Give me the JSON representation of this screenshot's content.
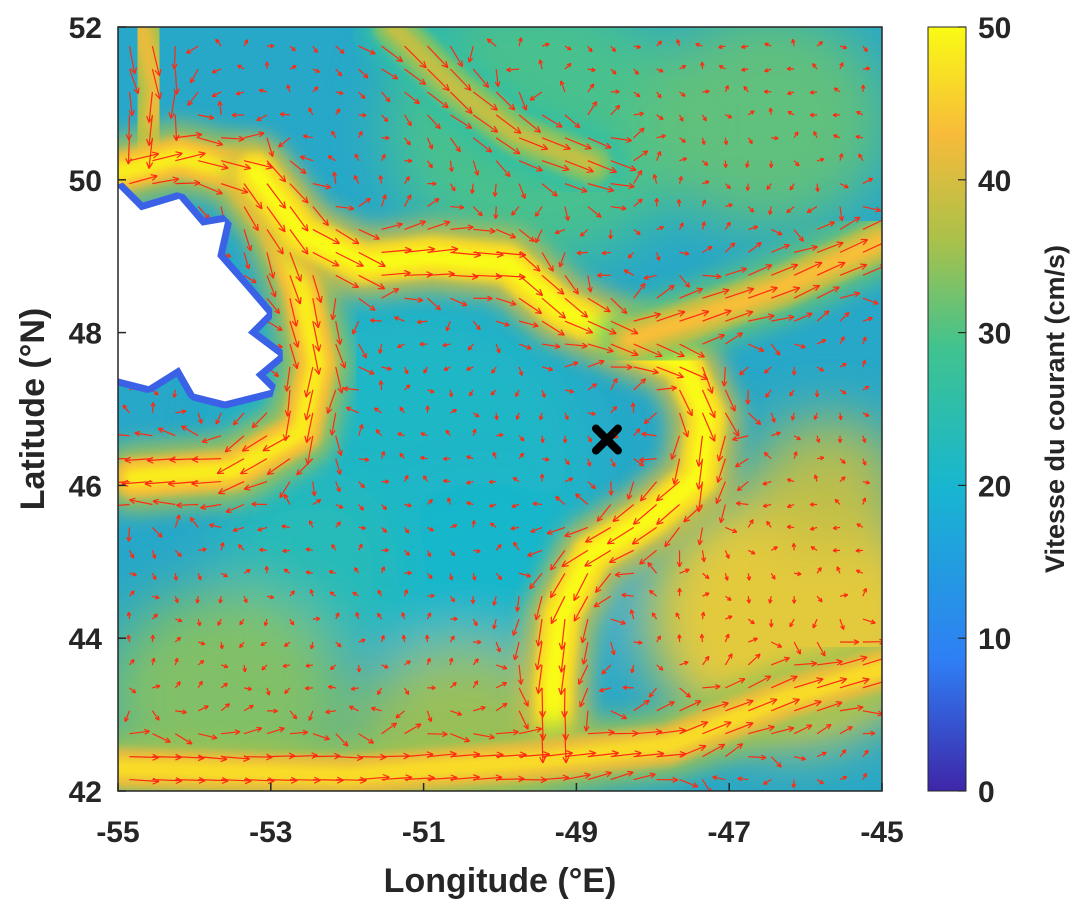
{
  "chart_data": {
    "type": "heatmap",
    "title": "",
    "xlabel": "Longitude (°E)",
    "ylabel": "Latitude (°N)",
    "xlim": [
      -55,
      -45
    ],
    "ylim": [
      42,
      52
    ],
    "x_ticks": [
      "-55",
      "-53",
      "-51",
      "-49",
      "-47",
      "-45"
    ],
    "y_ticks": [
      "42",
      "44",
      "46",
      "48",
      "50",
      "52"
    ],
    "colorbar": {
      "label": "Vitesse du courant (cm/s)",
      "range": [
        0,
        50
      ],
      "ticks": [
        "0",
        "10",
        "20",
        "30",
        "40",
        "50"
      ],
      "colormap": [
        "#3e26a8",
        "#2f7ef4",
        "#18b6cf",
        "#40c38f",
        "#a9c14a",
        "#f8bb3a",
        "#f9fb14"
      ]
    },
    "field": {
      "description_colors": {
        "land": "#ffffff",
        "coast": "#3b62e6",
        "arrow": "#ff2a10",
        "marker": "#000000"
      },
      "currents": [
        {
          "name": "labrador-current-north",
          "path": [
            [
              -54.7,
              52
            ],
            [
              -54.5,
              51.2
            ],
            [
              -54.6,
              50.3
            ]
          ],
          "speed": 40
        },
        {
          "name": "labrador-current-shelf",
          "path": [
            [
              -55,
              50.1
            ],
            [
              -54.2,
              50.3
            ],
            [
              -53.4,
              50.1
            ],
            [
              -52.9,
              49.4
            ],
            [
              -52.6,
              48.6
            ],
            [
              -52.4,
              47.6
            ],
            [
              -52.6,
              46.7
            ],
            [
              -53.5,
              46.2
            ],
            [
              -54.8,
              46.1
            ]
          ],
          "speed": 48
        },
        {
          "name": "shelf-break-current",
          "path": [
            [
              -53.2,
              50.1
            ],
            [
              -52.6,
              49.3
            ],
            [
              -51.8,
              48.9
            ],
            [
              -50.9,
              49.0
            ],
            [
              -49.9,
              48.9
            ],
            [
              -49.2,
              48.3
            ],
            [
              -48.3,
              47.9
            ],
            [
              -47.6,
              47.6
            ],
            [
              -47.3,
              46.9
            ],
            [
              -47.4,
              46.1
            ],
            [
              -48.0,
              45.6
            ],
            [
              -48.8,
              45.1
            ],
            [
              -49.2,
              44.3
            ],
            [
              -49.3,
              43.4
            ],
            [
              -49.3,
              42.8
            ]
          ],
          "speed": 52
        },
        {
          "name": "eastern-branch",
          "path": [
            [
              -48.3,
              47.9
            ],
            [
              -47.4,
              48.2
            ],
            [
              -46.3,
              48.6
            ],
            [
              -45.0,
              49.2
            ]
          ],
          "speed": 42
        },
        {
          "name": "north-atlantic-current",
          "path": [
            [
              -55,
              42.3
            ],
            [
              -52,
              42.2
            ],
            [
              -49.5,
              42.4
            ],
            [
              -47.8,
              42.6
            ],
            [
              -46.3,
              43.2
            ],
            [
              -45,
              43.6
            ]
          ],
          "speed": 46
        },
        {
          "name": "northern-branch",
          "path": [
            [
              -51.4,
              52
            ],
            [
              -50.6,
              51.2
            ],
            [
              -49.8,
              50.6
            ],
            [
              -48.8,
              50.2
            ]
          ],
          "speed": 36
        }
      ],
      "marker": {
        "label": "×",
        "lon": -48.6,
        "lat": 46.6
      }
    }
  }
}
